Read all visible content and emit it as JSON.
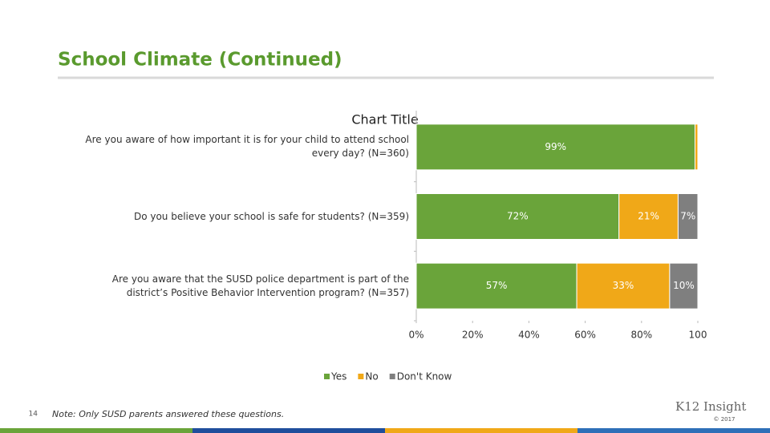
{
  "slide": {
    "title": "School Climate (Continued)",
    "page_number": "14",
    "note": "Note: Only SUSD parents answered these questions.",
    "logo": "K12 Insight",
    "copyright": "© 2017"
  },
  "chart_data": {
    "type": "stacked-bar-horizontal",
    "title": "Chart Title",
    "categories": [
      "Are you aware of how important it is for your child to attend school every day? (N=360)",
      "Do you believe your school is safe for students? (N=359)",
      "Are you aware that the SUSD police department is part of the district’s Positive Behavior Intervention program? (N=357)"
    ],
    "series": [
      {
        "name": "Yes",
        "color": "#6aa43a",
        "values": [
          99,
          72,
          57
        ],
        "value_labels": [
          "99%",
          "72%",
          "57%"
        ]
      },
      {
        "name": "No",
        "color": "#f0a818",
        "values": [
          1,
          21,
          33
        ],
        "value_labels": [
          null,
          "21%",
          "33%"
        ]
      },
      {
        "name": "Don't Know",
        "color": "#7f7f7f",
        "values": [
          0,
          7,
          10
        ],
        "value_labels": [
          null,
          "7%",
          "10%"
        ]
      }
    ],
    "xlim": [
      0,
      100
    ],
    "xticks": [
      {
        "value": 0,
        "label": "0%"
      },
      {
        "value": 20,
        "label": "20%"
      },
      {
        "value": 40,
        "label": "40%"
      },
      {
        "value": 60,
        "label": "60%"
      },
      {
        "value": 80,
        "label": "80%"
      },
      100
    ],
    "legend": "bottom"
  }
}
